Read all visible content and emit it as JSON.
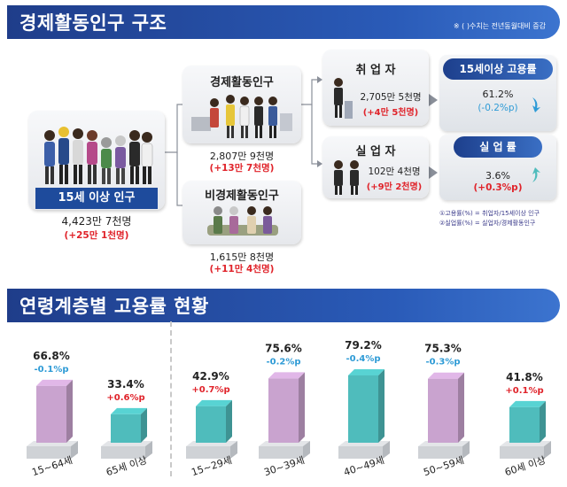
{
  "structure": {
    "title": "경제활동인구 구조",
    "note": "※ ( )수치는 전년동월대비 증감",
    "population_15plus": {
      "label": "15세 이상 인구",
      "value": "4,423만 7천명",
      "change": "(+25만 1천명)"
    },
    "econ_active": {
      "label": "경제활동인구",
      "value": "2,807만 9천명",
      "change": "(+13만 7천명)"
    },
    "non_econ_active": {
      "label": "비경제활동인구",
      "value": "1,615만 8천명",
      "change": "(+11만 4천명)"
    },
    "employed": {
      "label": "취 업 자",
      "value": "2,705만 5천명",
      "change": "(+4만 5천명)"
    },
    "unemployed": {
      "label": "실 업 자",
      "value": "102만 4천명",
      "change": "(+9만 2천명)"
    },
    "employment_rate": {
      "label": "15세이상 고용률",
      "value": "61.2%",
      "change": "(-0.2%p)"
    },
    "unemployment_rate": {
      "label": "실 업 률",
      "value": "3.6%",
      "change": "(+0.3%p)"
    },
    "footnote1": "①고용률(%) = 취업자/15세이상 인구",
    "footnote2": "②실업률(%) = 실업자/경제활동인구"
  },
  "age_section": {
    "title": "연령계층별 고용률 현황"
  },
  "colors": {
    "banner": "#1f3d8a",
    "increase": "#e0232a",
    "decrease": "#2f9bd6",
    "bar_purple": "#c9a3cf",
    "bar_teal": "#4fbcbc"
  },
  "chart_data": {
    "type": "bar",
    "title": "연령계층별 고용률 현황",
    "categories": [
      "15~64세",
      "65세 이상",
      "15~29세",
      "30~39세",
      "40~49세",
      "50~59세",
      "60세 이상"
    ],
    "values": [
      66.8,
      33.4,
      42.9,
      75.6,
      79.2,
      75.3,
      41.8
    ],
    "value_labels": [
      "66.8%",
      "33.4%",
      "42.9%",
      "75.6%",
      "79.2%",
      "75.3%",
      "41.8%"
    ],
    "changes": [
      "-0.1%p",
      "+0.6%p",
      "+0.7%p",
      "-0.2%p",
      "-0.4%p",
      "-0.3%p",
      "+0.1%p"
    ],
    "bar_colors": [
      "#c9a3cf",
      "#4fbcbc",
      "#4fbcbc",
      "#c9a3cf",
      "#4fbcbc",
      "#c9a3cf",
      "#4fbcbc"
    ],
    "ylim": [
      0,
      100
    ],
    "grid": false
  }
}
